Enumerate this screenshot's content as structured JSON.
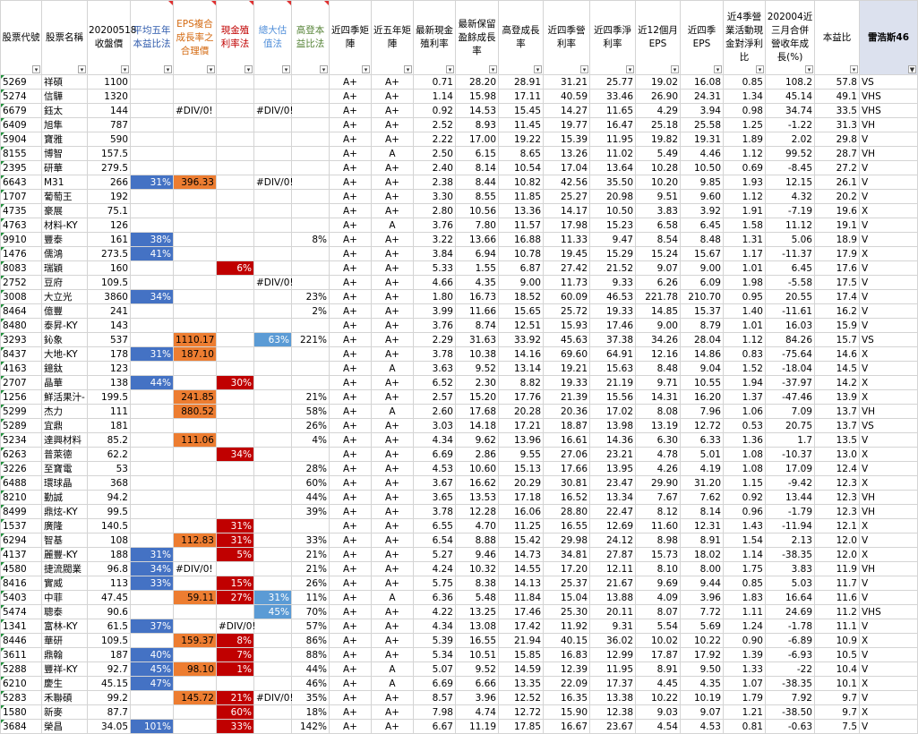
{
  "headers": [
    {
      "label": "股票代號",
      "cls": ""
    },
    {
      "label": "股票名稱",
      "cls": ""
    },
    {
      "label": "20200518收盤價",
      "cls": ""
    },
    {
      "label": "平均五年本益比法",
      "cls": "h-blue"
    },
    {
      "label": "EPS複合成長率之合理價",
      "cls": "h-orange"
    },
    {
      "label": "現金殖利率法",
      "cls": "h-red"
    },
    {
      "label": "總大估值法",
      "cls": "h-lblue"
    },
    {
      "label": "高登本益比法",
      "cls": "h-green"
    },
    {
      "label": "近四季矩陣",
      "cls": ""
    },
    {
      "label": "近五年矩陣",
      "cls": ""
    },
    {
      "label": "最新現金殖利率",
      "cls": ""
    },
    {
      "label": "最新保留盈餘成長率",
      "cls": ""
    },
    {
      "label": "高登成長率",
      "cls": ""
    },
    {
      "label": "近四季營利率",
      "cls": ""
    },
    {
      "label": "近四季淨利率",
      "cls": ""
    },
    {
      "label": "近12個月EPS",
      "cls": ""
    },
    {
      "label": "近四季EPS",
      "cls": ""
    },
    {
      "label": "近4季營業活動現金對淨利比",
      "cls": ""
    },
    {
      "label": "202004近三月合併營收年成長(%)",
      "cls": ""
    },
    {
      "label": "本益比",
      "cls": ""
    },
    {
      "label": "雷浩斯46",
      "cls": "last"
    }
  ],
  "rows": [
    [
      "5269",
      "祥碩",
      "1100",
      "",
      "",
      "",
      "",
      "",
      "A+",
      "A+",
      "0.71",
      "28.20",
      "28.91",
      "31.21",
      "25.77",
      "19.02",
      "16.08",
      "0.85",
      "108.2",
      "57.8",
      "VS"
    ],
    [
      "5274",
      "信驊",
      "1320",
      "",
      "",
      "",
      "",
      "",
      "A+",
      "A+",
      "1.14",
      "15.98",
      "17.11",
      "40.59",
      "33.46",
      "26.90",
      "24.31",
      "1.34",
      "45.14",
      "49.1",
      "VHS"
    ],
    [
      "6679",
      "鈺太",
      "144",
      "",
      "#DIV/0!",
      "",
      "#DIV/0!",
      "",
      "A+",
      "A+",
      "0.92",
      "14.53",
      "15.45",
      "14.27",
      "11.65",
      "4.29",
      "3.94",
      "0.98",
      "34.74",
      "33.5",
      "VHS"
    ],
    [
      "6409",
      "旭隼",
      "787",
      "",
      "",
      "",
      "",
      "",
      "A+",
      "A+",
      "2.52",
      "8.93",
      "11.45",
      "19.77",
      "16.47",
      "25.18",
      "25.58",
      "1.25",
      "-1.22",
      "31.3",
      "VH"
    ],
    [
      "5904",
      "寶雅",
      "590",
      "",
      "",
      "",
      "",
      "",
      "A+",
      "A+",
      "2.22",
      "17.00",
      "19.22",
      "15.39",
      "11.95",
      "19.82",
      "19.31",
      "1.89",
      "2.02",
      "29.8",
      "V"
    ],
    [
      "8155",
      "博智",
      "157.5",
      "",
      "",
      "",
      "",
      "",
      "A+",
      "A",
      "2.50",
      "6.15",
      "8.65",
      "13.26",
      "11.02",
      "5.49",
      "4.46",
      "1.12",
      "99.52",
      "28.7",
      "VH"
    ],
    [
      "2395",
      "研華",
      "279.5",
      "",
      "",
      "",
      "",
      "",
      "A+",
      "A+",
      "2.40",
      "8.14",
      "10.54",
      "17.04",
      "13.64",
      "10.28",
      "10.50",
      "0.69",
      "-8.45",
      "27.2",
      "V"
    ],
    [
      "6643",
      "M31",
      "266",
      "31%",
      "396.33",
      "",
      "#DIV/0!",
      "",
      "A+",
      "A+",
      "2.38",
      "8.44",
      "10.82",
      "42.56",
      "35.50",
      "10.20",
      "9.85",
      "1.93",
      "12.15",
      "26.1",
      "V"
    ],
    [
      "1707",
      "葡萄王",
      "192",
      "",
      "",
      "",
      "",
      "",
      "A+",
      "A+",
      "3.30",
      "8.55",
      "11.85",
      "25.27",
      "20.98",
      "9.51",
      "9.60",
      "1.12",
      "4.32",
      "20.2",
      "V"
    ],
    [
      "4735",
      "豪展",
      "75.1",
      "",
      "",
      "",
      "",
      "",
      "A+",
      "A+",
      "2.80",
      "10.56",
      "13.36",
      "14.17",
      "10.50",
      "3.83",
      "3.92",
      "1.91",
      "-7.19",
      "19.6",
      "X"
    ],
    [
      "4763",
      "材料-KY",
      "126",
      "",
      "",
      "",
      "",
      "",
      "A+",
      "A",
      "3.76",
      "7.80",
      "11.57",
      "17.98",
      "15.23",
      "6.58",
      "6.45",
      "1.58",
      "11.12",
      "19.1",
      "V"
    ],
    [
      "9910",
      "豐泰",
      "161",
      "38%",
      "",
      "",
      "",
      "8%",
      "A+",
      "A+",
      "3.22",
      "13.66",
      "16.88",
      "11.33",
      "9.47",
      "8.54",
      "8.48",
      "1.31",
      "5.06",
      "18.9",
      "V"
    ],
    [
      "1476",
      "儒鴻",
      "273.5",
      "41%",
      "",
      "",
      "",
      "",
      "A+",
      "A+",
      "3.84",
      "6.94",
      "10.78",
      "19.45",
      "15.29",
      "15.24",
      "15.67",
      "1.17",
      "-11.37",
      "17.9",
      "X"
    ],
    [
      "8083",
      "瑞穎",
      "160",
      "",
      "",
      "6%",
      "",
      "",
      "A+",
      "A+",
      "5.33",
      "1.55",
      "6.87",
      "27.42",
      "21.52",
      "9.07",
      "9.00",
      "1.01",
      "6.45",
      "17.6",
      "V"
    ],
    [
      "2752",
      "豆府",
      "109.5",
      "",
      "",
      "",
      "#DIV/0!",
      "",
      "A+",
      "A+",
      "4.66",
      "4.35",
      "9.00",
      "11.73",
      "9.33",
      "6.26",
      "6.09",
      "1.98",
      "-5.58",
      "17.5",
      "V"
    ],
    [
      "3008",
      "大立光",
      "3860",
      "34%",
      "",
      "",
      "",
      "23%",
      "A+",
      "A+",
      "1.80",
      "16.73",
      "18.52",
      "60.09",
      "46.53",
      "221.78",
      "210.70",
      "0.95",
      "20.55",
      "17.4",
      "V"
    ],
    [
      "8464",
      "億豐",
      "241",
      "",
      "",
      "",
      "",
      "2%",
      "A+",
      "A+",
      "3.99",
      "11.66",
      "15.65",
      "25.72",
      "19.33",
      "14.85",
      "15.37",
      "1.40",
      "-11.61",
      "16.2",
      "V"
    ],
    [
      "8480",
      "泰昇-KY",
      "143",
      "",
      "",
      "",
      "",
      "",
      "A+",
      "A+",
      "3.76",
      "8.74",
      "12.51",
      "15.93",
      "17.46",
      "9.00",
      "8.79",
      "1.01",
      "16.03",
      "15.9",
      "V"
    ],
    [
      "3293",
      "鈊象",
      "537",
      "",
      "1110.17",
      "",
      "63%",
      "221%",
      "A+",
      "A+",
      "2.29",
      "31.63",
      "33.92",
      "45.63",
      "37.38",
      "34.26",
      "28.04",
      "1.12",
      "84.26",
      "15.7",
      "VS"
    ],
    [
      "8437",
      "大地-KY",
      "178",
      "31%",
      "187.10",
      "",
      "",
      "",
      "A+",
      "A+",
      "3.78",
      "10.38",
      "14.16",
      "69.60",
      "64.91",
      "12.16",
      "14.86",
      "0.83",
      "-75.64",
      "14.6",
      "X"
    ],
    [
      "4163",
      "鐿鈦",
      "123",
      "",
      "",
      "",
      "",
      "",
      "A+",
      "A",
      "3.63",
      "9.52",
      "13.14",
      "19.21",
      "15.63",
      "8.48",
      "9.04",
      "1.52",
      "-18.04",
      "14.5",
      "V"
    ],
    [
      "2707",
      "晶華",
      "138",
      "44%",
      "",
      "30%",
      "",
      "",
      "A+",
      "A+",
      "6.52",
      "2.30",
      "8.82",
      "19.33",
      "21.19",
      "9.71",
      "10.55",
      "1.94",
      "-37.97",
      "14.2",
      "X"
    ],
    [
      "1256",
      "鮮活果汁-",
      "199.5",
      "",
      "241.85",
      "",
      "",
      "21%",
      "A+",
      "A+",
      "2.57",
      "15.20",
      "17.76",
      "21.39",
      "15.56",
      "14.31",
      "16.20",
      "1.37",
      "-47.46",
      "13.9",
      "X"
    ],
    [
      "5299",
      "杰力",
      "111",
      "",
      "880.52",
      "",
      "",
      "58%",
      "A+",
      "A",
      "2.60",
      "17.68",
      "20.28",
      "20.36",
      "17.02",
      "8.08",
      "7.96",
      "1.06",
      "7.09",
      "13.7",
      "VH"
    ],
    [
      "5289",
      "宜鼎",
      "181",
      "",
      "",
      "",
      "",
      "26%",
      "A+",
      "A+",
      "3.03",
      "14.18",
      "17.21",
      "18.87",
      "13.98",
      "13.19",
      "12.72",
      "0.53",
      "20.75",
      "13.7",
      "VS"
    ],
    [
      "5234",
      "達興材料",
      "85.2",
      "",
      "111.06",
      "",
      "",
      "4%",
      "A+",
      "A+",
      "4.34",
      "9.62",
      "13.96",
      "16.61",
      "14.36",
      "6.30",
      "6.33",
      "1.36",
      "1.7",
      "13.5",
      "V"
    ],
    [
      "6263",
      "普萊德",
      "62.2",
      "",
      "",
      "34%",
      "",
      "",
      "A+",
      "A+",
      "6.69",
      "2.86",
      "9.55",
      "27.06",
      "23.21",
      "4.78",
      "5.01",
      "1.08",
      "-10.37",
      "13.0",
      "X"
    ],
    [
      "3226",
      "至寶電",
      "53",
      "",
      "",
      "",
      "",
      "28%",
      "A+",
      "A+",
      "4.53",
      "10.60",
      "15.13",
      "17.66",
      "13.95",
      "4.26",
      "4.19",
      "1.08",
      "17.09",
      "12.4",
      "V"
    ],
    [
      "6488",
      "環球晶",
      "368",
      "",
      "",
      "",
      "",
      "60%",
      "A+",
      "A+",
      "3.67",
      "16.62",
      "20.29",
      "30.81",
      "23.47",
      "29.90",
      "31.20",
      "1.15",
      "-9.42",
      "12.3",
      "X"
    ],
    [
      "8210",
      "勤誠",
      "94.2",
      "",
      "",
      "",
      "",
      "44%",
      "A+",
      "A+",
      "3.65",
      "13.53",
      "17.18",
      "16.52",
      "13.34",
      "7.67",
      "7.62",
      "0.92",
      "13.44",
      "12.3",
      "VH"
    ],
    [
      "8499",
      "鼎炫-KY",
      "99.5",
      "",
      "",
      "",
      "",
      "39%",
      "A+",
      "A+",
      "3.78",
      "12.28",
      "16.06",
      "28.80",
      "22.47",
      "8.12",
      "8.14",
      "0.96",
      "-1.79",
      "12.3",
      "VH"
    ],
    [
      "1537",
      "廣隆",
      "140.5",
      "",
      "",
      "31%",
      "",
      "",
      "A+",
      "A+",
      "6.55",
      "4.70",
      "11.25",
      "16.55",
      "12.69",
      "11.60",
      "12.31",
      "1.43",
      "-11.94",
      "12.1",
      "X"
    ],
    [
      "6294",
      "智基",
      "108",
      "",
      "112.83",
      "31%",
      "",
      "33%",
      "A+",
      "A+",
      "6.54",
      "8.88",
      "15.42",
      "29.98",
      "24.12",
      "8.98",
      "8.91",
      "1.54",
      "2.13",
      "12.0",
      "V"
    ],
    [
      "4137",
      "麗豐-KY",
      "188",
      "31%",
      "",
      "5%",
      "",
      "21%",
      "A+",
      "A+",
      "5.27",
      "9.46",
      "14.73",
      "34.81",
      "27.87",
      "15.73",
      "18.02",
      "1.14",
      "-38.35",
      "12.0",
      "X"
    ],
    [
      "4580",
      "捷流閥業",
      "96.8",
      "34%",
      "#DIV/0!",
      "",
      "",
      "21%",
      "A+",
      "A+",
      "4.24",
      "10.32",
      "14.55",
      "17.20",
      "12.11",
      "8.10",
      "8.00",
      "1.75",
      "3.83",
      "11.9",
      "VH"
    ],
    [
      "8416",
      "實威",
      "113",
      "33%",
      "",
      "15%",
      "",
      "26%",
      "A+",
      "A+",
      "5.75",
      "8.38",
      "14.13",
      "25.37",
      "21.67",
      "9.69",
      "9.44",
      "0.85",
      "5.03",
      "11.7",
      "V"
    ],
    [
      "5403",
      "中菲",
      "47.45",
      "",
      "59.11",
      "27%",
      "31%",
      "11%",
      "A+",
      "A",
      "6.36",
      "5.48",
      "11.84",
      "15.04",
      "13.88",
      "4.09",
      "3.96",
      "1.83",
      "16.64",
      "11.6",
      "V"
    ],
    [
      "5474",
      "聰泰",
      "90.6",
      "",
      "",
      "",
      "45%",
      "70%",
      "A+",
      "A+",
      "4.22",
      "13.25",
      "17.46",
      "25.30",
      "20.11",
      "8.07",
      "7.72",
      "1.11",
      "24.69",
      "11.2",
      "VHS"
    ],
    [
      "1341",
      "富林-KY",
      "61.5",
      "37%",
      "",
      "#DIV/0!",
      "",
      "57%",
      "A+",
      "A+",
      "4.34",
      "13.08",
      "17.42",
      "11.92",
      "9.31",
      "5.54",
      "5.69",
      "1.24",
      "-1.78",
      "11.1",
      "V"
    ],
    [
      "8446",
      "華研",
      "109.5",
      "",
      "159.37",
      "8%",
      "",
      "86%",
      "A+",
      "A+",
      "5.39",
      "16.55",
      "21.94",
      "40.15",
      "36.02",
      "10.02",
      "10.22",
      "0.90",
      "-6.89",
      "10.9",
      "X"
    ],
    [
      "3611",
      "鼎翰",
      "187",
      "40%",
      "",
      "7%",
      "",
      "88%",
      "A+",
      "A+",
      "5.34",
      "10.51",
      "15.85",
      "16.83",
      "12.99",
      "17.87",
      "17.92",
      "1.39",
      "-6.93",
      "10.5",
      "V"
    ],
    [
      "5288",
      "豐祥-KY",
      "92.7",
      "45%",
      "98.10",
      "1%",
      "",
      "44%",
      "A+",
      "A",
      "5.07",
      "9.52",
      "14.59",
      "12.39",
      "11.95",
      "8.91",
      "9.50",
      "1.33",
      "-22",
      "10.4",
      "V"
    ],
    [
      "6210",
      "慶生",
      "45.15",
      "47%",
      "",
      "",
      "",
      "46%",
      "A+",
      "A",
      "6.69",
      "6.66",
      "13.35",
      "22.09",
      "17.37",
      "4.45",
      "4.35",
      "1.07",
      "-38.35",
      "10.1",
      "X"
    ],
    [
      "5283",
      "禾聯碩",
      "99.2",
      "",
      "145.72",
      "21%",
      "#DIV/0!",
      "35%",
      "A+",
      "A+",
      "8.57",
      "3.96",
      "12.52",
      "16.35",
      "13.38",
      "10.22",
      "10.19",
      "1.79",
      "7.92",
      "9.7",
      "V"
    ],
    [
      "1580",
      "新麥",
      "87.7",
      "",
      "",
      "60%",
      "",
      "18%",
      "A+",
      "A+",
      "7.98",
      "4.74",
      "12.72",
      "15.90",
      "12.38",
      "9.03",
      "9.07",
      "1.21",
      "-38.50",
      "9.7",
      "X"
    ],
    [
      "3684",
      "榮昌",
      "34.05",
      "101%",
      "",
      "33%",
      "",
      "142%",
      "A+",
      "A+",
      "6.67",
      "11.19",
      "17.85",
      "16.67",
      "23.67",
      "4.54",
      "4.53",
      "0.81",
      "-0.63",
      "7.5",
      "V"
    ]
  ],
  "highlights": {
    "col3": "blue",
    "col4": "orange",
    "col5": "red",
    "col6": "lblue"
  },
  "colors": {
    "blue": "#4472c4",
    "orange": "#ed7d31",
    "red": "#c00000",
    "lblue": "#5b9bd5",
    "last_header_bg": "#dce1ee"
  }
}
